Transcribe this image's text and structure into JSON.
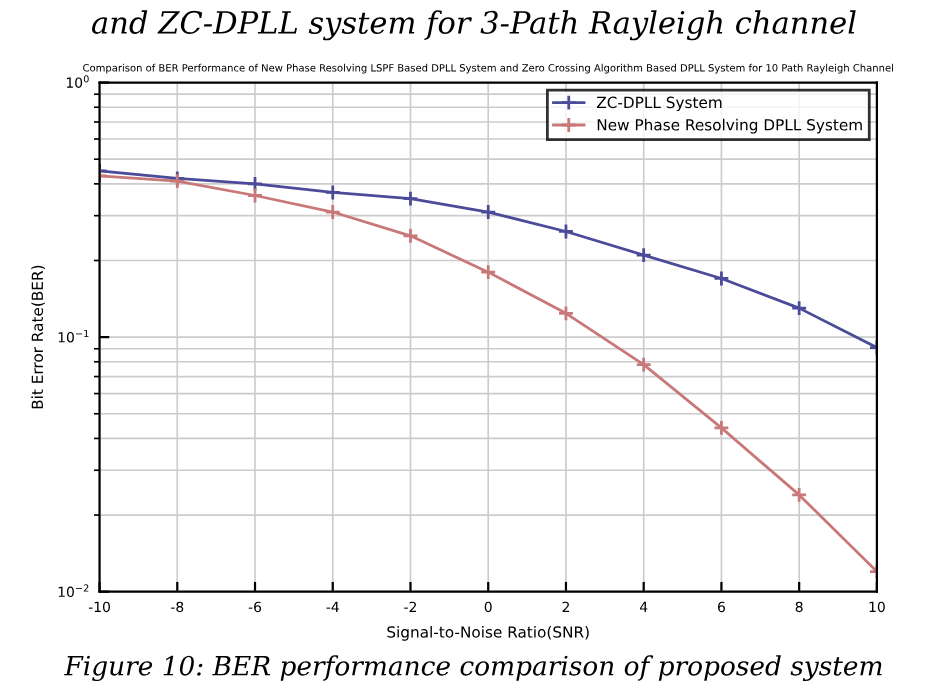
{
  "chart_data": {
    "type": "line",
    "title": "Comparison of BER Performance of New Phase Resolving LSPF Based DPLL System and Zero Crossing Algorithm Based DPLL System for 10 Path Rayleigh Channel",
    "xlabel": "Signal-to-Noise Ratio(SNR)",
    "ylabel": "Bit Error Rate(BER)",
    "annotations": [
      "and ZC-DPLL system for 3-Path Rayleigh channel",
      "Figure 10: BER performance comparison of proposed system"
    ],
    "x": [
      -10,
      -8,
      -6,
      -4,
      -2,
      0,
      2,
      4,
      6,
      8,
      10
    ],
    "series": [
      {
        "name": "ZC-DPLL System",
        "color": "#4b4b9a",
        "values": [
          0.45,
          0.42,
          0.4,
          0.37,
          0.35,
          0.31,
          0.26,
          0.21,
          0.17,
          0.13,
          0.091
        ]
      },
      {
        "name": "New Phase Resolving DPLL System",
        "color": "#c87878",
        "values": [
          0.43,
          0.41,
          0.36,
          0.31,
          0.25,
          0.18,
          0.124,
          0.078,
          0.044,
          0.024,
          0.012
        ]
      }
    ],
    "log": "y",
    "xlim": [
      -10,
      10
    ],
    "ylim": [
      0.01,
      1
    ],
    "xticks": [
      -10,
      -8,
      -6,
      -4,
      -2,
      0,
      2,
      4,
      6,
      8,
      10
    ],
    "yticks": [
      {
        "value": 0.01,
        "label": "10$^{−2}$"
      },
      {
        "value": 0.1,
        "label": "10$^{−1}$"
      },
      {
        "value": 1,
        "label": "10$^{0}$"
      }
    ],
    "grid": true,
    "legend": "top right",
    "marker": "cross",
    "line_style": "solid"
  }
}
